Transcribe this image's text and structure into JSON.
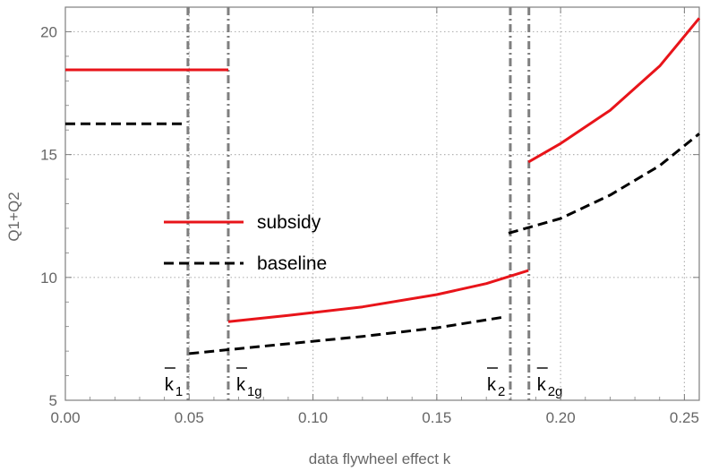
{
  "chart_data": {
    "type": "line",
    "title": "",
    "xlabel": "data flywheel effect k",
    "ylabel": "Q1+Q2",
    "xlim": [
      0,
      0.256
    ],
    "ylim": [
      5,
      21
    ],
    "x_ticks": [
      "0.00",
      "0.05",
      "0.10",
      "0.15",
      "0.20",
      "0.25"
    ],
    "y_ticks": [
      "5",
      "10",
      "15",
      "20"
    ],
    "grid": "dotted",
    "legend_position": "center-left",
    "colors": {
      "subsidy": "#e8141a",
      "baseline": "#000000",
      "threshold": "#7f7f7f",
      "axis": "#7f7f7f"
    },
    "series": [
      {
        "name": "subsidy",
        "style": "solid",
        "segments": [
          [
            [
              0.0,
              18.45
            ],
            [
              0.0658,
              18.45
            ]
          ],
          [
            [
              0.0658,
              8.2
            ],
            [
              0.09,
              8.45
            ],
            [
              0.12,
              8.8
            ],
            [
              0.15,
              9.3
            ],
            [
              0.17,
              9.75
            ],
            [
              0.187,
              10.28
            ]
          ],
          [
            [
              0.187,
              14.7
            ],
            [
              0.2,
              15.45
            ],
            [
              0.22,
              16.8
            ],
            [
              0.24,
              18.6
            ],
            [
              0.256,
              20.55
            ]
          ]
        ]
      },
      {
        "name": "baseline",
        "style": "dashed",
        "segments": [
          [
            [
              0.0,
              16.25
            ],
            [
              0.0485,
              16.25
            ]
          ],
          [
            [
              0.05,
              6.9
            ],
            [
              0.08,
              7.2
            ],
            [
              0.12,
              7.6
            ],
            [
              0.15,
              7.95
            ],
            [
              0.178,
              8.4
            ]
          ],
          [
            [
              0.179,
              11.8
            ],
            [
              0.2,
              12.4
            ],
            [
              0.22,
              13.35
            ],
            [
              0.24,
              14.55
            ],
            [
              0.256,
              15.85
            ]
          ]
        ]
      }
    ],
    "thresholds": [
      {
        "label": "k",
        "sub": "1",
        "x": 0.0495
      },
      {
        "label": "k",
        "sub": "1g",
        "x": 0.0658
      },
      {
        "label": "k",
        "sub": "2",
        "x": 0.1797
      },
      {
        "label": "k",
        "sub": "2g",
        "x": 0.1872
      }
    ]
  }
}
